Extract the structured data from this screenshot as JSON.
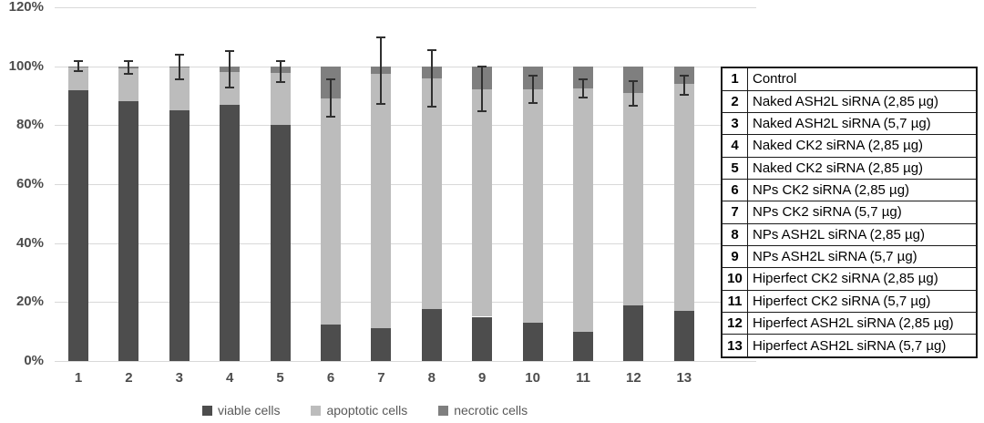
{
  "chart_data": {
    "type": "bar",
    "stacked": true,
    "title": "",
    "xlabel": "",
    "ylabel": "",
    "ylim": [
      0,
      120
    ],
    "yticks": [
      "0%",
      "20%",
      "40%",
      "60%",
      "80%",
      "100%",
      "120%"
    ],
    "grid": true,
    "legend_position": "bottom",
    "categories": [
      "1",
      "2",
      "3",
      "4",
      "5",
      "6",
      "7",
      "8",
      "9",
      "10",
      "11",
      "12",
      "13"
    ],
    "series": [
      {
        "name": "viable cells",
        "color": "#4d4d4d",
        "values": [
          92,
          88,
          85,
          87,
          80,
          12.5,
          11,
          17.5,
          15,
          13,
          10,
          19,
          17
        ]
      },
      {
        "name": "apoptotic cells",
        "color": "#bcbcbc",
        "values": [
          7.5,
          11.2,
          14.5,
          11,
          17.6,
          76.5,
          86.5,
          78.4,
          77.3,
          79.3,
          82.6,
          71.8,
          77
        ]
      },
      {
        "name": "necrotic cells",
        "color": "#7f7f7f",
        "values": [
          0.5,
          0.8,
          0.5,
          2,
          2.4,
          11,
          2.5,
          4.1,
          7.7,
          7.7,
          7.4,
          9.2,
          6
        ]
      }
    ],
    "error_bars": [
      {
        "center": 100,
        "delta": 1.6
      },
      {
        "center": 99.7,
        "delta": 2.2
      },
      {
        "center": 99.8,
        "delta": 4.2
      },
      {
        "center": 98.9,
        "delta": 6.2
      },
      {
        "center": 98.2,
        "delta": 3.6
      },
      {
        "center": 89.2,
        "delta": 6.3
      },
      {
        "center": 98.6,
        "delta": 11.3
      },
      {
        "center": 95.9,
        "delta": 9.6
      },
      {
        "center": 92.3,
        "delta": 7.5
      },
      {
        "center": 92.2,
        "delta": 4.6
      },
      {
        "center": 92.5,
        "delta": 3.0
      },
      {
        "center": 90.9,
        "delta": 4.2
      },
      {
        "center": 93.5,
        "delta": 3.3
      }
    ]
  },
  "legend": {
    "items": [
      {
        "label": "viable cells",
        "color": "#4d4d4d"
      },
      {
        "label": "apoptotic cells",
        "color": "#bcbcbc"
      },
      {
        "label": "necrotic cells",
        "color": "#7f7f7f"
      }
    ]
  },
  "table": {
    "rows": [
      {
        "num": "1",
        "label": "Control"
      },
      {
        "num": "2",
        "label": "Naked ASH2L siRNA (2,85 µg)"
      },
      {
        "num": "3",
        "label": "Naked ASH2L siRNA (5,7 µg)"
      },
      {
        "num": "4",
        "label": "Naked CK2 siRNA (2,85 µg)"
      },
      {
        "num": "5",
        "label": "Naked CK2 siRNA (2,85 µg)"
      },
      {
        "num": "6",
        "label": "NPs CK2 siRNA (2,85 µg)"
      },
      {
        "num": "7",
        "label": "NPs CK2 siRNA (5,7 µg)"
      },
      {
        "num": "8",
        "label": "NPs ASH2L siRNA (2,85 µg)"
      },
      {
        "num": "9",
        "label": "NPs ASH2L siRNA (5,7 µg)"
      },
      {
        "num": "10",
        "label": "Hiperfect CK2 siRNA (2,85 µg)"
      },
      {
        "num": "11",
        "label": "Hiperfect CK2 siRNA (5,7 µg)"
      },
      {
        "num": "12",
        "label": "Hiperfect ASH2L siRNA (2,85 µg)"
      },
      {
        "num": "13",
        "label": "Hiperfect ASH2L siRNA (5,7 µg)"
      }
    ]
  },
  "colors": {
    "viable": "#4d4d4d",
    "apoptotic": "#bcbcbc",
    "necrotic": "#7f7f7f",
    "gridline": "#d9d9d9",
    "axis_text": "#4d4d4d",
    "error_bar": "#303030",
    "table_border": "#1a1a1a",
    "table_text": "#000000"
  }
}
